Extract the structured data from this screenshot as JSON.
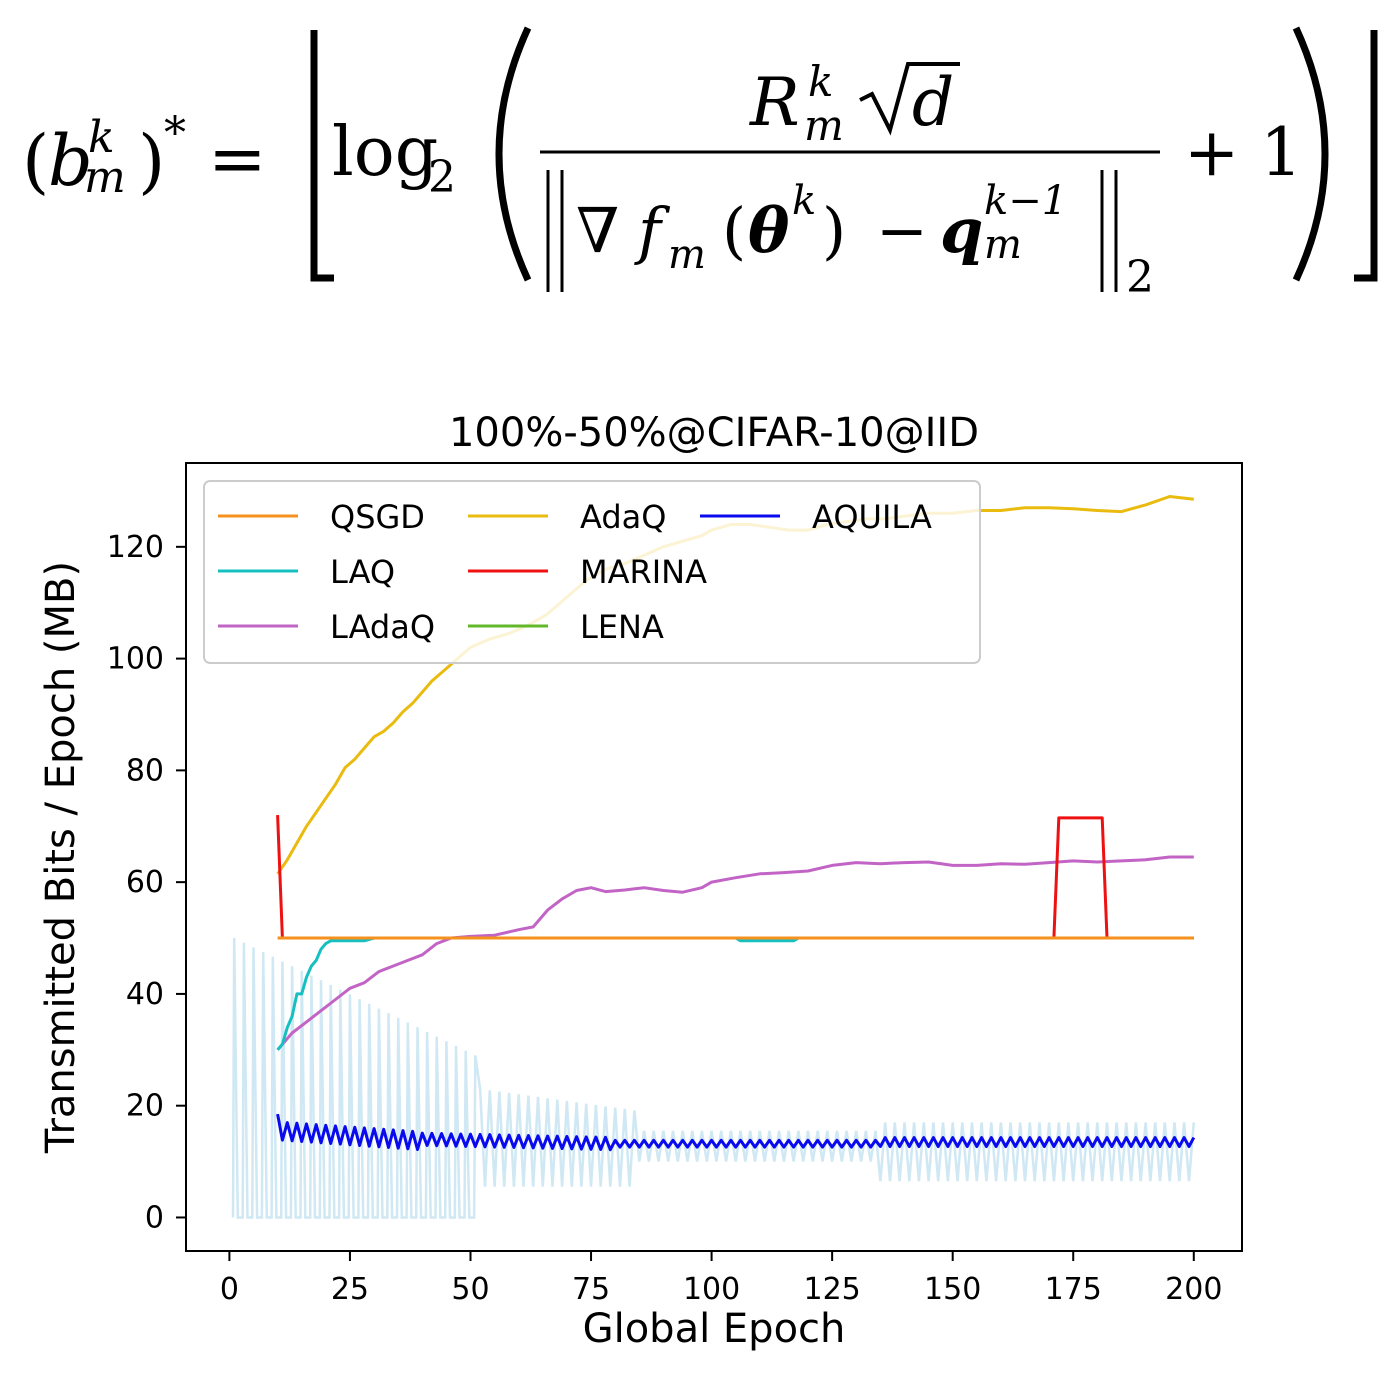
{
  "formula": {
    "lhs_open": "(",
    "lhs_base": "b",
    "lhs_sup": "k",
    "lhs_sub": "m",
    "lhs_close": ")",
    "lhs_star": "*",
    "equals": "=",
    "log": "log",
    "log_sub": "2",
    "num_R": "R",
    "num_sup": "k",
    "num_sub": "m",
    "num_d": "d",
    "den_nabla": "∇",
    "den_f": "f",
    "den_f_sub": "m",
    "den_paren_open": "(",
    "den_theta": "θ",
    "den_theta_sup": "k",
    "den_paren_close": ")",
    "den_minus": "−",
    "den_q": "q",
    "den_q_sup": "k−1",
    "den_q_sub": "m",
    "den_norm_sub": "2",
    "plus_one": "+ 1"
  },
  "chart_data": {
    "type": "line",
    "title": "100%-50%@CIFAR-10@IID",
    "xlabel": "Global Epoch",
    "ylabel": "Transmitted Bits / Epoch (MB)",
    "xlim": [
      -9,
      210
    ],
    "ylim": [
      -6,
      135
    ],
    "xticks": [
      0,
      25,
      50,
      75,
      100,
      125,
      150,
      175,
      200
    ],
    "yticks": [
      0,
      20,
      40,
      60,
      80,
      100,
      120
    ],
    "grid": false,
    "legend": {
      "placement": "upper-left",
      "columns": 3
    },
    "series": [
      {
        "name": "QSGD",
        "color": "#f5921e",
        "kind": "const",
        "x0": 10,
        "x1": 200,
        "y": 50
      },
      {
        "name": "LAQ",
        "color": "#17c0c0",
        "kind": "points",
        "points": [
          [
            10,
            30
          ],
          [
            11,
            31
          ],
          [
            12,
            34
          ],
          [
            13,
            36
          ],
          [
            14,
            40
          ],
          [
            15,
            40
          ],
          [
            16,
            43
          ],
          [
            17,
            45
          ],
          [
            18,
            46
          ],
          [
            19,
            48
          ],
          [
            20,
            49
          ],
          [
            21,
            49.5
          ],
          [
            28,
            49.5
          ],
          [
            30,
            50
          ],
          [
            105,
            50
          ],
          [
            106,
            49.5
          ],
          [
            117,
            49.5
          ],
          [
            118,
            50
          ],
          [
            200,
            50
          ]
        ]
      },
      {
        "name": "LAdaQ",
        "color": "#c264c6",
        "kind": "points",
        "points": [
          [
            10,
            30
          ],
          [
            13,
            33
          ],
          [
            16,
            35
          ],
          [
            19,
            37
          ],
          [
            22,
            39
          ],
          [
            25,
            41
          ],
          [
            28,
            42
          ],
          [
            31,
            44
          ],
          [
            34,
            45
          ],
          [
            37,
            46
          ],
          [
            40,
            47
          ],
          [
            43,
            49
          ],
          [
            46,
            50
          ],
          [
            50,
            50.3
          ],
          [
            55,
            50.5
          ],
          [
            60,
            51.5
          ],
          [
            63,
            52
          ],
          [
            66,
            55
          ],
          [
            69,
            57
          ],
          [
            72,
            58.5
          ],
          [
            75,
            59
          ],
          [
            78,
            58.3
          ],
          [
            82,
            58.6
          ],
          [
            86,
            59
          ],
          [
            90,
            58.5
          ],
          [
            94,
            58.2
          ],
          [
            98,
            59
          ],
          [
            100,
            60
          ],
          [
            105,
            60.8
          ],
          [
            110,
            61.5
          ],
          [
            115,
            61.7
          ],
          [
            120,
            62
          ],
          [
            125,
            63
          ],
          [
            130,
            63.5
          ],
          [
            135,
            63.3
          ],
          [
            140,
            63.5
          ],
          [
            145,
            63.6
          ],
          [
            150,
            63
          ],
          [
            155,
            63
          ],
          [
            160,
            63.3
          ],
          [
            165,
            63.2
          ],
          [
            170,
            63.5
          ],
          [
            175,
            63.8
          ],
          [
            180,
            63.6
          ],
          [
            185,
            63.8
          ],
          [
            190,
            64
          ],
          [
            195,
            64.5
          ],
          [
            200,
            64.5
          ]
        ]
      },
      {
        "name": "AdaQ",
        "color": "#eabb0f",
        "kind": "points",
        "points": [
          [
            10,
            61.5
          ],
          [
            12,
            64
          ],
          [
            14,
            67
          ],
          [
            16,
            70
          ],
          [
            18,
            72.5
          ],
          [
            20,
            75
          ],
          [
            22,
            77.5
          ],
          [
            24,
            80.5
          ],
          [
            26,
            82
          ],
          [
            28,
            84
          ],
          [
            30,
            86
          ],
          [
            32,
            87
          ],
          [
            34,
            88.5
          ],
          [
            36,
            90.5
          ],
          [
            38,
            92
          ],
          [
            40,
            94
          ],
          [
            42,
            96
          ],
          [
            44,
            97.5
          ],
          [
            46,
            99
          ],
          [
            48,
            100.5
          ],
          [
            50,
            102
          ],
          [
            54,
            103.5
          ],
          [
            58,
            104.5
          ],
          [
            62,
            106
          ],
          [
            66,
            108
          ],
          [
            70,
            111
          ],
          [
            74,
            114
          ],
          [
            78,
            116
          ],
          [
            82,
            117
          ],
          [
            86,
            118.5
          ],
          [
            90,
            120
          ],
          [
            94,
            121
          ],
          [
            98,
            122
          ],
          [
            100,
            123
          ],
          [
            104,
            124
          ],
          [
            108,
            124
          ],
          [
            112,
            123.5
          ],
          [
            116,
            123
          ],
          [
            120,
            123
          ],
          [
            124,
            124
          ],
          [
            128,
            124.5
          ],
          [
            132,
            125
          ],
          [
            136,
            125
          ],
          [
            140,
            125.5
          ],
          [
            145,
            126
          ],
          [
            150,
            126
          ],
          [
            155,
            126.5
          ],
          [
            160,
            126.5
          ],
          [
            165,
            127
          ],
          [
            170,
            127
          ],
          [
            175,
            126.8
          ],
          [
            180,
            126.5
          ],
          [
            185,
            126.3
          ],
          [
            190,
            127.5
          ],
          [
            195,
            129
          ],
          [
            200,
            128.5
          ]
        ]
      },
      {
        "name": "MARINA",
        "color": "#ee1111",
        "kind": "points",
        "points": [
          [
            10,
            72
          ],
          [
            11,
            50
          ],
          [
            171,
            50
          ],
          [
            172,
            71.5
          ],
          [
            181,
            71.5
          ],
          [
            182,
            50
          ],
          [
            200,
            50
          ]
        ]
      },
      {
        "name": "LENA",
        "color": "#62b82a",
        "kind": "none"
      },
      {
        "name": "AQUILA",
        "color": "#0a0aef",
        "kind": "aquila",
        "x0": 10,
        "x1": 200
      }
    ],
    "background_series": {
      "color": "#cfe8f3",
      "x0": 1,
      "x1": 200
    }
  }
}
